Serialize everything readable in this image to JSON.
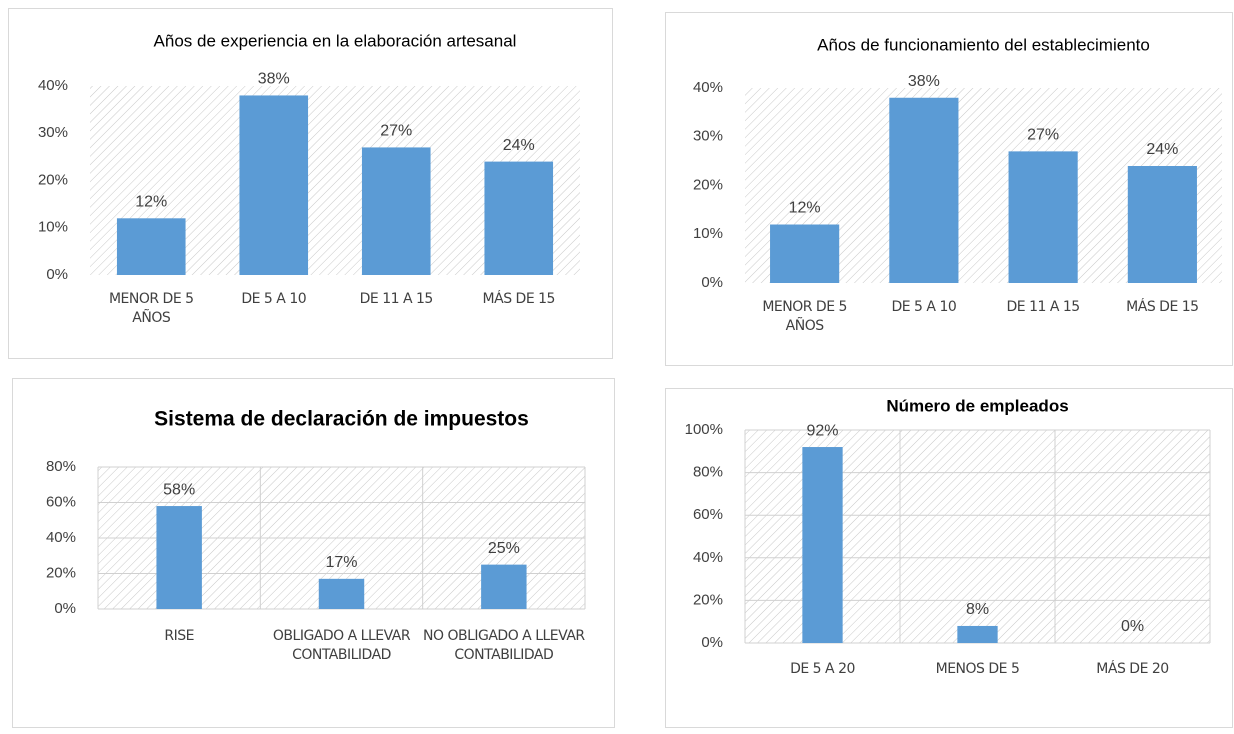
{
  "chart_data": [
    {
      "type": "bar",
      "title": "Años de experiencia en la elaboración artesanal",
      "categories": [
        "MENOR DE 5 AÑOS",
        "DE 5 A 10",
        "DE 11 A 15",
        "MÁS DE 15"
      ],
      "values": [
        12,
        38,
        27,
        24
      ],
      "value_labels": [
        "12%",
        "38%",
        "27%",
        "24%"
      ],
      "color": "#5b9bd5",
      "ylim": [
        0,
        40
      ],
      "yticks": [
        {
          "value": 0,
          "label": "0%"
        },
        {
          "value": 10,
          "label": "10%"
        },
        {
          "value": 20,
          "label": "20%"
        },
        {
          "value": 30,
          "label": "30%"
        },
        {
          "value": 40,
          "label": "40%"
        }
      ],
      "grid": false
    },
    {
      "type": "bar",
      "title": "Años de funcionamiento del establecimiento",
      "categories": [
        "MENOR DE 5 AÑOS",
        "DE 5 A 10",
        "DE 11 A 15",
        "MÁS DE 15"
      ],
      "values": [
        12,
        38,
        27,
        24
      ],
      "value_labels": [
        "12%",
        "38%",
        "27%",
        "24%"
      ],
      "color": "#5b9bd5",
      "ylim": [
        0,
        40
      ],
      "yticks": [
        {
          "value": 0,
          "label": "0%"
        },
        {
          "value": 10,
          "label": "10%"
        },
        {
          "value": 20,
          "label": "20%"
        },
        {
          "value": 30,
          "label": "30%"
        },
        {
          "value": 40,
          "label": "40%"
        }
      ],
      "grid": false
    },
    {
      "type": "bar",
      "title": "Sistema de declaración de impuestos",
      "categories": [
        "RISE",
        "OBLIGADO A LLEVAR CONTABILIDAD",
        "NO OBLIGADO A LLEVAR CONTABILIDAD"
      ],
      "values": [
        58,
        17,
        25
      ],
      "value_labels": [
        "58%",
        "17%",
        "25%"
      ],
      "color": "#5b9bd5",
      "ylim": [
        0,
        80
      ],
      "yticks": [
        {
          "value": 0,
          "label": "0%"
        },
        {
          "value": 20,
          "label": "20%"
        },
        {
          "value": 40,
          "label": "40%"
        },
        {
          "value": 60,
          "label": "60%"
        },
        {
          "value": 80,
          "label": "80%"
        }
      ],
      "grid": true
    },
    {
      "type": "bar",
      "title": "Número de empleados",
      "categories": [
        "DE 5 A 20",
        "MENOS DE 5",
        "MÁS DE 20"
      ],
      "values": [
        92,
        8,
        0
      ],
      "value_labels": [
        "92%",
        "8%",
        "0%"
      ],
      "color": "#5b9bd5",
      "ylim": [
        0,
        100
      ],
      "yticks": [
        {
          "value": 0,
          "label": "0%"
        },
        {
          "value": 20,
          "label": "20%"
        },
        {
          "value": 40,
          "label": "40%"
        },
        {
          "value": 60,
          "label": "60%"
        },
        {
          "value": 80,
          "label": "80%"
        },
        {
          "value": 100,
          "label": "100%"
        }
      ],
      "grid": true
    }
  ]
}
